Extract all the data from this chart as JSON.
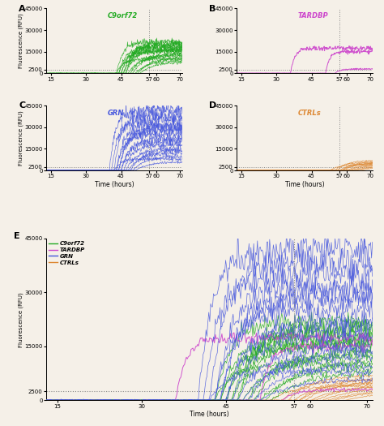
{
  "background_color": "#f5f0e8",
  "xlim": [
    13,
    71
  ],
  "ylim": [
    0,
    45000
  ],
  "yticks": [
    0,
    2500,
    15000,
    30000,
    45000
  ],
  "xticks": [
    15,
    30,
    45,
    57,
    60,
    70
  ],
  "xticklabels": [
    "15",
    "30",
    "45",
    "57",
    "60",
    "70"
  ],
  "vline_x": 57,
  "hline_y": 2500,
  "ylabel": "Fluorescence (RFU)",
  "xlabel": "Time (hours)",
  "color_c9": "#22aa22",
  "color_tardbp": "#cc44cc",
  "color_grn": "#4455dd",
  "color_ctrl": "#dd8833",
  "label_c9": "C9orf72",
  "label_tardbp": "TARDBP",
  "label_grn": "GRN",
  "label_ctrl": "CTRLs"
}
